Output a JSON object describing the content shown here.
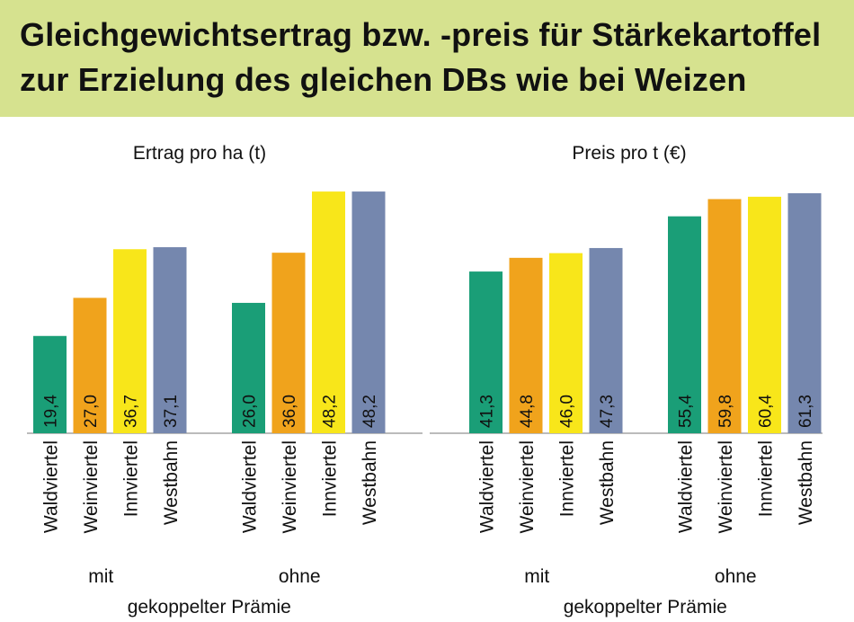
{
  "title": {
    "line1": "Gleichgewichtsertrag bzw. -preis für Stärkekartoffel",
    "line2": "zur Erzielung des gleichen DBs wie bei Weizen"
  },
  "chart_data": {
    "type": "bar",
    "categories": [
      "Waldviertel",
      "Weinviertel",
      "Innviertel",
      "Westbahn"
    ],
    "colors": [
      "#1a9e77",
      "#f0a31c",
      "#f8e61a",
      "#7587ae"
    ],
    "bottom_label": "gekoppelter Prämie",
    "panels": [
      {
        "title": "Ertrag pro ha (t)",
        "ylim": [
          0,
          57
        ],
        "groups": [
          {
            "label": "mit",
            "values": [
              19.4,
              27.0,
              36.7,
              37.1
            ],
            "value_labels": [
              "19,4",
              "27,0",
              "36,7",
              "37,1"
            ]
          },
          {
            "label": "ohne",
            "values": [
              26.0,
              36.0,
              48.2,
              48.2
            ],
            "value_labels": [
              "26,0",
              "36,0",
              "48,2",
              "48,2"
            ]
          }
        ]
      },
      {
        "title": "Preis pro t (€)",
        "ylim": [
          0,
          73
        ],
        "groups": [
          {
            "label": "mit",
            "values": [
              41.3,
              44.8,
              46.0,
              47.3
            ],
            "value_labels": [
              "41,3",
              "44,8",
              "46,0",
              "47,3"
            ]
          },
          {
            "label": "ohne",
            "values": [
              55.4,
              59.8,
              60.4,
              61.3
            ],
            "value_labels": [
              "55,4",
              "59,8",
              "60,4",
              "61,3"
            ]
          }
        ]
      }
    ]
  }
}
